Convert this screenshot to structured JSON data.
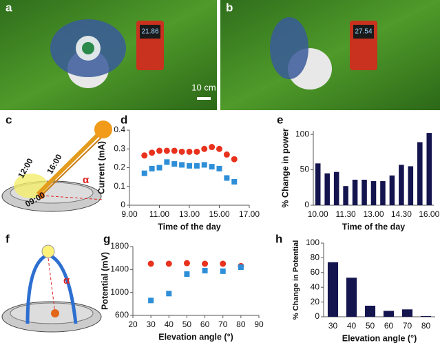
{
  "panels": {
    "a": "a",
    "b": "b",
    "c": "c",
    "d": "d",
    "e": "e",
    "f": "f",
    "g": "g",
    "h": "h"
  },
  "photos": {
    "scale_bar": "10 cm",
    "meter_a": "21.86",
    "meter_b": "27.54"
  },
  "diagrams": {
    "c": {
      "labels": [
        "12:00",
        "16:00",
        "09:00",
        "α"
      ]
    },
    "f": {
      "labels": [
        "α"
      ]
    }
  },
  "chart_data": [
    {
      "type": "scatter",
      "xlabel": "Time of the day",
      "ylabel": "Current (mA)",
      "x": [
        10,
        10.5,
        11,
        11.5,
        12,
        12.5,
        13,
        13.5,
        14,
        14.5,
        15,
        15.5,
        16
      ],
      "series": [
        {
          "color": "#e8321e",
          "values": [
            0.265,
            0.28,
            0.29,
            0.29,
            0.29,
            0.285,
            0.285,
            0.285,
            0.3,
            0.31,
            0.3,
            0.27,
            0.245
          ]
        },
        {
          "color": "#2e8fd8",
          "values": [
            0.17,
            0.195,
            0.2,
            0.23,
            0.22,
            0.215,
            0.21,
            0.21,
            0.215,
            0.205,
            0.195,
            0.145,
            0.125
          ]
        }
      ],
      "xlim": [
        9,
        17
      ],
      "xticks": [
        {
          "value": 9,
          "label": "9.00"
        },
        {
          "value": 11,
          "label": "11.00"
        },
        {
          "value": 13,
          "label": "13.00"
        },
        {
          "value": 15,
          "label": "15.00"
        },
        {
          "value": 17,
          "label": "17.00"
        }
      ],
      "ylim": [
        0,
        0.4
      ],
      "yticks": [
        0,
        0.1,
        0.2,
        0.3,
        0.4
      ]
    },
    {
      "type": "bar",
      "xlabel": "Time of the day",
      "ylabel": "% Change in power",
      "color": "#14144f",
      "categories": [
        "10.00",
        null,
        null,
        "11.30",
        null,
        null,
        "13.00",
        null,
        null,
        "14.30",
        null,
        null,
        "16.00"
      ],
      "values": [
        59,
        45,
        47,
        27,
        36,
        36,
        34,
        34,
        42,
        57,
        55,
        89,
        102
      ],
      "ylim": [
        0,
        105
      ],
      "yticks": [
        0,
        50,
        100
      ]
    },
    {
      "type": "scatter",
      "xlabel": "Elevation angle (°)",
      "ylabel": "Potential (mV)",
      "x": [
        30,
        40,
        50,
        60,
        70,
        80
      ],
      "series": [
        {
          "color": "#e8321e",
          "values": [
            1500,
            1500,
            1510,
            1500,
            1500,
            1460
          ]
        },
        {
          "color": "#2e8fd8",
          "values": [
            860,
            980,
            1320,
            1380,
            1370,
            1440
          ]
        }
      ],
      "xlim": [
        20,
        90
      ],
      "xticks": [
        20,
        30,
        40,
        50,
        60,
        70,
        80,
        90
      ],
      "ylim": [
        600,
        1800
      ],
      "yticks": [
        600,
        1000,
        1400,
        1800
      ]
    },
    {
      "type": "bar",
      "xlabel": "Elevation angle (°)",
      "ylabel": "% Change in Potential",
      "color": "#14144f",
      "categories": [
        "30",
        "40",
        "50",
        "60",
        "70",
        "80"
      ],
      "values": [
        74,
        53,
        15,
        8,
        10,
        1
      ],
      "ylim": [
        0,
        100
      ],
      "yticks": [
        0,
        20,
        40,
        60,
        80,
        100
      ]
    }
  ]
}
